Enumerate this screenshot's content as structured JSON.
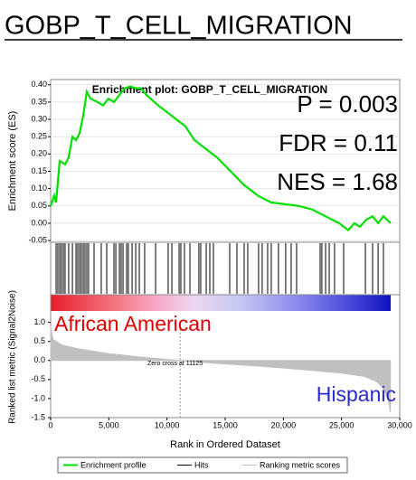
{
  "header": {
    "title": "GOBP_T_CELL_MIGRATION"
  },
  "chart_data": [
    {
      "type": "line",
      "title": "Enrichment plot: GOBP_T_CELL_MIGRATION",
      "ylabel": "Enrichment score (ES)",
      "x": [
        0,
        300,
        470,
        780,
        1240,
        1550,
        1870,
        2180,
        2490,
        2800,
        3110,
        3420,
        4040,
        4510,
        4970,
        5440,
        5910,
        6370,
        6840,
        7310,
        7770,
        8240,
        9250,
        10420,
        11580,
        12360,
        13140,
        14300,
        15470,
        16630,
        17800,
        18960,
        20130,
        21300,
        22460,
        23630,
        24790,
        25570,
        26110,
        26580,
        27120,
        27670,
        28140,
        28600,
        29220
      ],
      "series": [
        {
          "name": "Enrichment profile",
          "color": "#00e000",
          "values": [
            0.05,
            0.08,
            0.06,
            0.18,
            0.17,
            0.19,
            0.25,
            0.24,
            0.26,
            0.31,
            0.38,
            0.36,
            0.35,
            0.34,
            0.36,
            0.35,
            0.37,
            0.39,
            0.395,
            0.39,
            0.39,
            0.37,
            0.34,
            0.31,
            0.28,
            0.24,
            0.22,
            0.19,
            0.15,
            0.11,
            0.08,
            0.06,
            0.055,
            0.05,
            0.04,
            0.02,
            0.0,
            -0.02,
            0.0,
            -0.01,
            0.01,
            0.02,
            0.0,
            0.02,
            0.0
          ]
        }
      ],
      "ylim": [
        -0.055,
        0.415
      ],
      "yticks": [
        {
          "value": 0.4,
          "label": "0.40"
        },
        {
          "value": 0.35,
          "label": "0.35"
        },
        {
          "value": 0.3,
          "label": "0.30"
        },
        {
          "value": 0.25,
          "label": "0.25"
        },
        {
          "value": 0.2,
          "label": "0.20"
        },
        {
          "value": 0.15,
          "label": "0.15"
        },
        {
          "value": 0.1,
          "label": "0.10"
        },
        {
          "value": 0.05,
          "label": "0.05"
        },
        {
          "value": 0,
          "label": "0.00"
        },
        {
          "value": -0.05,
          "label": "-0.05"
        }
      ],
      "grid": true,
      "annotations": [
        {
          "text": "P = 0.003",
          "color": "#000000"
        },
        {
          "text": "FDR = 0.11",
          "color": "#000000"
        },
        {
          "text": "NES = 1.68",
          "color": "#000000"
        }
      ]
    },
    {
      "type": "hits",
      "series": [
        {
          "name": "Hits",
          "color": "#000000",
          "values": [
            470,
            620,
            780,
            930,
            1090,
            1240,
            1550,
            1870,
            2180,
            2330,
            2490,
            2640,
            2800,
            2950,
            3110,
            3260,
            3730,
            4350,
            4820,
            5440,
            5600,
            5910,
            6060,
            6220,
            6530,
            6680,
            7000,
            7310,
            7620,
            8080,
            9020,
            10100,
            10420,
            11040,
            11190,
            11500,
            11970,
            12740,
            12900,
            13370,
            13680,
            13990,
            15390,
            16010,
            16630,
            16940,
            17870,
            18180,
            18650,
            18960,
            19580,
            20200,
            20670,
            21140,
            23160,
            23310,
            23630,
            23940,
            24400,
            25180,
            27050,
            27670,
            28140,
            28600
          ]
        }
      ]
    },
    {
      "type": "area",
      "ylabel": "Ranked list metric (Signal2Noise)",
      "xlabel": "Rank in Ordered Dataset",
      "x": [
        0,
        200,
        1000,
        2500,
        5000,
        8000,
        11125,
        14000,
        18000,
        22000,
        25000,
        27000,
        28000,
        28500,
        29000,
        29200
      ],
      "series": [
        {
          "name": "Ranking metric scores",
          "color": "#c0c0c0",
          "values": [
            0.9,
            0.55,
            0.4,
            0.3,
            0.18,
            0.08,
            0,
            -0.07,
            -0.15,
            -0.25,
            -0.33,
            -0.42,
            -0.55,
            -0.7,
            -1.0,
            -1.35
          ]
        }
      ],
      "xlim": [
        0,
        30000
      ],
      "xticks": [
        0,
        {
          "value": 5000,
          "label": "5,000"
        },
        {
          "value": 10000,
          "label": "10,000"
        },
        {
          "value": 15000,
          "label": "15,000"
        },
        {
          "value": 20000,
          "label": "20,000"
        },
        {
          "value": 25000,
          "label": "25,000"
        },
        {
          "value": 30000,
          "label": "30,000"
        }
      ],
      "ylim": [
        -1.5,
        1.3
      ],
      "yticks": [
        {
          "value": 1,
          "label": "1.0"
        },
        {
          "value": 0.5,
          "label": "0.5"
        },
        {
          "value": 0,
          "label": "0.0"
        },
        {
          "value": -0.5,
          "label": "-0.5"
        },
        {
          "value": -1,
          "label": "-1.0"
        },
        {
          "value": -1.5,
          "label": "-1.5"
        }
      ],
      "zero_cross": 11125,
      "annotations": [
        {
          "text": "Zero cross at 11125",
          "color": "#000000"
        },
        {
          "text": "African American",
          "color": "#e00000"
        },
        {
          "text": "Hispanic",
          "color": "#2a2ad0"
        }
      ]
    }
  ]
}
